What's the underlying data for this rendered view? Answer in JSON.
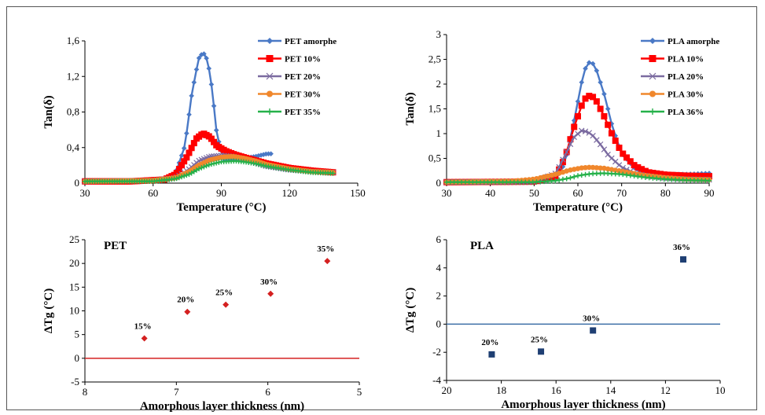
{
  "chart_data": [
    {
      "type": "line",
      "ylabel": "Tan(δ)",
      "xlabel": "Temperature (°C)",
      "xlim": [
        30,
        150
      ],
      "ylim": [
        0,
        1.6
      ],
      "xticks": [
        "30",
        "60",
        "90",
        "120",
        "150"
      ],
      "yticks": [
        "0",
        "0,4",
        "0,8",
        "1,2",
        "1,6"
      ],
      "legend_position": "top-right",
      "series": [
        {
          "name": "PET amorphe",
          "color": "#4a79c6",
          "marker": "diamond",
          "x": [
            30,
            50,
            65,
            70,
            74,
            77,
            80,
            82,
            84,
            86,
            88,
            91,
            95,
            100,
            105,
            110,
            112
          ],
          "y": [
            0.02,
            0.02,
            0.04,
            0.12,
            0.42,
            1.0,
            1.4,
            1.47,
            1.38,
            1.05,
            0.55,
            0.27,
            0.26,
            0.28,
            0.3,
            0.33,
            0.33
          ]
        },
        {
          "name": "PET 10%",
          "color": "#ff0000",
          "marker": "square",
          "x": [
            30,
            50,
            65,
            70,
            75,
            79,
            82,
            85,
            88,
            92,
            96,
            100,
            110,
            120,
            130,
            140
          ],
          "y": [
            0.02,
            0.02,
            0.04,
            0.1,
            0.3,
            0.5,
            0.56,
            0.52,
            0.42,
            0.36,
            0.32,
            0.29,
            0.22,
            0.17,
            0.14,
            0.12
          ]
        },
        {
          "name": "PET 20%",
          "color": "#7b6ba0",
          "marker": "x",
          "x": [
            30,
            60,
            70,
            76,
            80,
            85,
            90,
            95,
            100,
            105,
            110,
            120,
            130,
            140
          ],
          "y": [
            0.02,
            0.03,
            0.06,
            0.16,
            0.25,
            0.3,
            0.31,
            0.3,
            0.27,
            0.23,
            0.19,
            0.15,
            0.13,
            0.12
          ]
        },
        {
          "name": "PET 30%",
          "color": "#f0872c",
          "marker": "circle",
          "x": [
            30,
            60,
            70,
            76,
            80,
            85,
            90,
            95,
            100,
            105,
            110,
            120,
            130,
            140
          ],
          "y": [
            0.02,
            0.03,
            0.06,
            0.13,
            0.2,
            0.26,
            0.29,
            0.3,
            0.28,
            0.25,
            0.21,
            0.16,
            0.13,
            0.12
          ]
        },
        {
          "name": "PET 35%",
          "color": "#26b14a",
          "marker": "plus",
          "x": [
            30,
            60,
            70,
            76,
            80,
            85,
            90,
            96,
            100,
            105,
            110,
            120,
            130,
            140
          ],
          "y": [
            0.02,
            0.02,
            0.05,
            0.1,
            0.16,
            0.21,
            0.24,
            0.25,
            0.24,
            0.22,
            0.19,
            0.15,
            0.12,
            0.11
          ]
        }
      ]
    },
    {
      "type": "line",
      "ylabel": "Tan(δ)",
      "xlabel": "Temperature (°C)",
      "xlim": [
        30,
        90
      ],
      "ylim": [
        0,
        3
      ],
      "xticks": [
        "30",
        "40",
        "50",
        "60",
        "70",
        "80",
        "90"
      ],
      "yticks": [
        "0",
        "0,5",
        "1",
        "1,5",
        "2",
        "2,5",
        "3"
      ],
      "legend_position": "top-right",
      "series": [
        {
          "name": "PLA amorphe",
          "color": "#4a79c6",
          "marker": "diamond",
          "x": [
            30,
            50,
            55,
            57,
            59,
            61,
            62,
            63,
            64,
            66,
            68,
            70,
            73,
            76,
            80,
            85,
            90
          ],
          "y": [
            0.02,
            0.02,
            0.08,
            0.4,
            1.2,
            2.1,
            2.4,
            2.46,
            2.35,
            1.8,
            1.1,
            0.6,
            0.3,
            0.2,
            0.18,
            0.18,
            0.2
          ]
        },
        {
          "name": "PLA 10%",
          "color": "#ff0000",
          "marker": "square",
          "x": [
            30,
            50,
            55,
            57,
            59,
            61,
            62,
            63,
            64,
            66,
            68,
            70,
            73,
            76,
            80,
            85,
            90
          ],
          "y": [
            0.02,
            0.03,
            0.15,
            0.5,
            1.1,
            1.6,
            1.75,
            1.77,
            1.7,
            1.35,
            0.95,
            0.62,
            0.35,
            0.22,
            0.17,
            0.15,
            0.14
          ]
        },
        {
          "name": "PLA 20%",
          "color": "#7b6ba0",
          "marker": "x",
          "x": [
            30,
            50,
            55,
            57,
            59,
            61,
            63,
            65,
            67,
            70,
            73,
            76,
            80,
            85,
            90
          ],
          "y": [
            0.02,
            0.03,
            0.2,
            0.55,
            0.92,
            1.07,
            1.0,
            0.8,
            0.56,
            0.32,
            0.2,
            0.14,
            0.1,
            0.08,
            0.07
          ]
        },
        {
          "name": "PLA 30%",
          "color": "#f0872c",
          "marker": "circle",
          "x": [
            30,
            45,
            50,
            55,
            58,
            61,
            63,
            66,
            70,
            75,
            80,
            85,
            90
          ],
          "y": [
            0.02,
            0.04,
            0.08,
            0.18,
            0.26,
            0.31,
            0.32,
            0.3,
            0.24,
            0.16,
            0.11,
            0.08,
            0.07
          ]
        },
        {
          "name": "PLA 36%",
          "color": "#26b14a",
          "marker": "plus",
          "x": [
            30,
            50,
            55,
            58,
            60,
            63,
            66,
            70,
            75,
            80,
            85,
            90
          ],
          "y": [
            0.02,
            0.02,
            0.05,
            0.1,
            0.15,
            0.19,
            0.2,
            0.18,
            0.12,
            0.08,
            0.06,
            0.05
          ]
        }
      ]
    },
    {
      "type": "scatter",
      "title": "PET",
      "ylabel": "ΔTg (°C)",
      "xlabel": "Amorphous layer thickness (nm)",
      "xlim": [
        8,
        5
      ],
      "ylim": [
        -5,
        25
      ],
      "xticks": [
        "8",
        "7",
        "6",
        "5"
      ],
      "yticks": [
        "-5",
        "0",
        "5",
        "10",
        "15",
        "20",
        "25"
      ],
      "color": "#d42020",
      "reference_line_y": 0,
      "points": [
        {
          "x": 7.35,
          "y": 4.2,
          "label": "15%"
        },
        {
          "x": 6.88,
          "y": 9.8,
          "label": "20%"
        },
        {
          "x": 6.46,
          "y": 11.3,
          "label": "25%"
        },
        {
          "x": 5.97,
          "y": 13.6,
          "label": "30%"
        },
        {
          "x": 5.35,
          "y": 20.5,
          "label": "35%"
        }
      ]
    },
    {
      "type": "scatter",
      "title": "PLA",
      "ylabel": "ΔTg (°C)",
      "xlabel": "Amorphous layer thickness (nm)",
      "xlim": [
        20,
        10
      ],
      "ylim": [
        -4,
        6
      ],
      "xticks": [
        "20",
        "18",
        "16",
        "14",
        "12",
        "10"
      ],
      "yticks": [
        "-4",
        "-2",
        "0",
        "2",
        "4",
        "6"
      ],
      "color": "#1f3f73",
      "reference_line_y": 0,
      "points": [
        {
          "x": 18.35,
          "y": -2.15,
          "label": "20%"
        },
        {
          "x": 16.55,
          "y": -1.95,
          "label": "25%"
        },
        {
          "x": 14.65,
          "y": -0.45,
          "label": "30%"
        },
        {
          "x": 11.35,
          "y": 4.6,
          "label": "36%"
        }
      ]
    }
  ]
}
